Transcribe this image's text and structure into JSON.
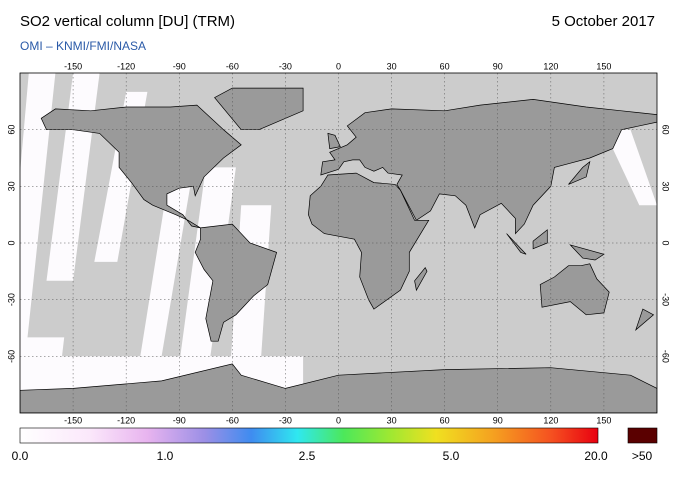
{
  "header": {
    "title": "SO2 vertical column [DU] (TRM)",
    "date": "5 October 2017",
    "source": "OMI  –  KNMI/FMI/NASA"
  },
  "map": {
    "lon_ticks": [
      -150,
      -120,
      -90,
      -60,
      -30,
      0,
      30,
      60,
      90,
      120,
      150
    ],
    "lat_ticks": [
      60,
      30,
      0,
      -30,
      -60
    ]
  },
  "colorbar": {
    "labels": [
      "0.0",
      "1.0",
      "2.5",
      "5.0",
      "20.0"
    ],
    "overflow_label": ">50"
  }
}
